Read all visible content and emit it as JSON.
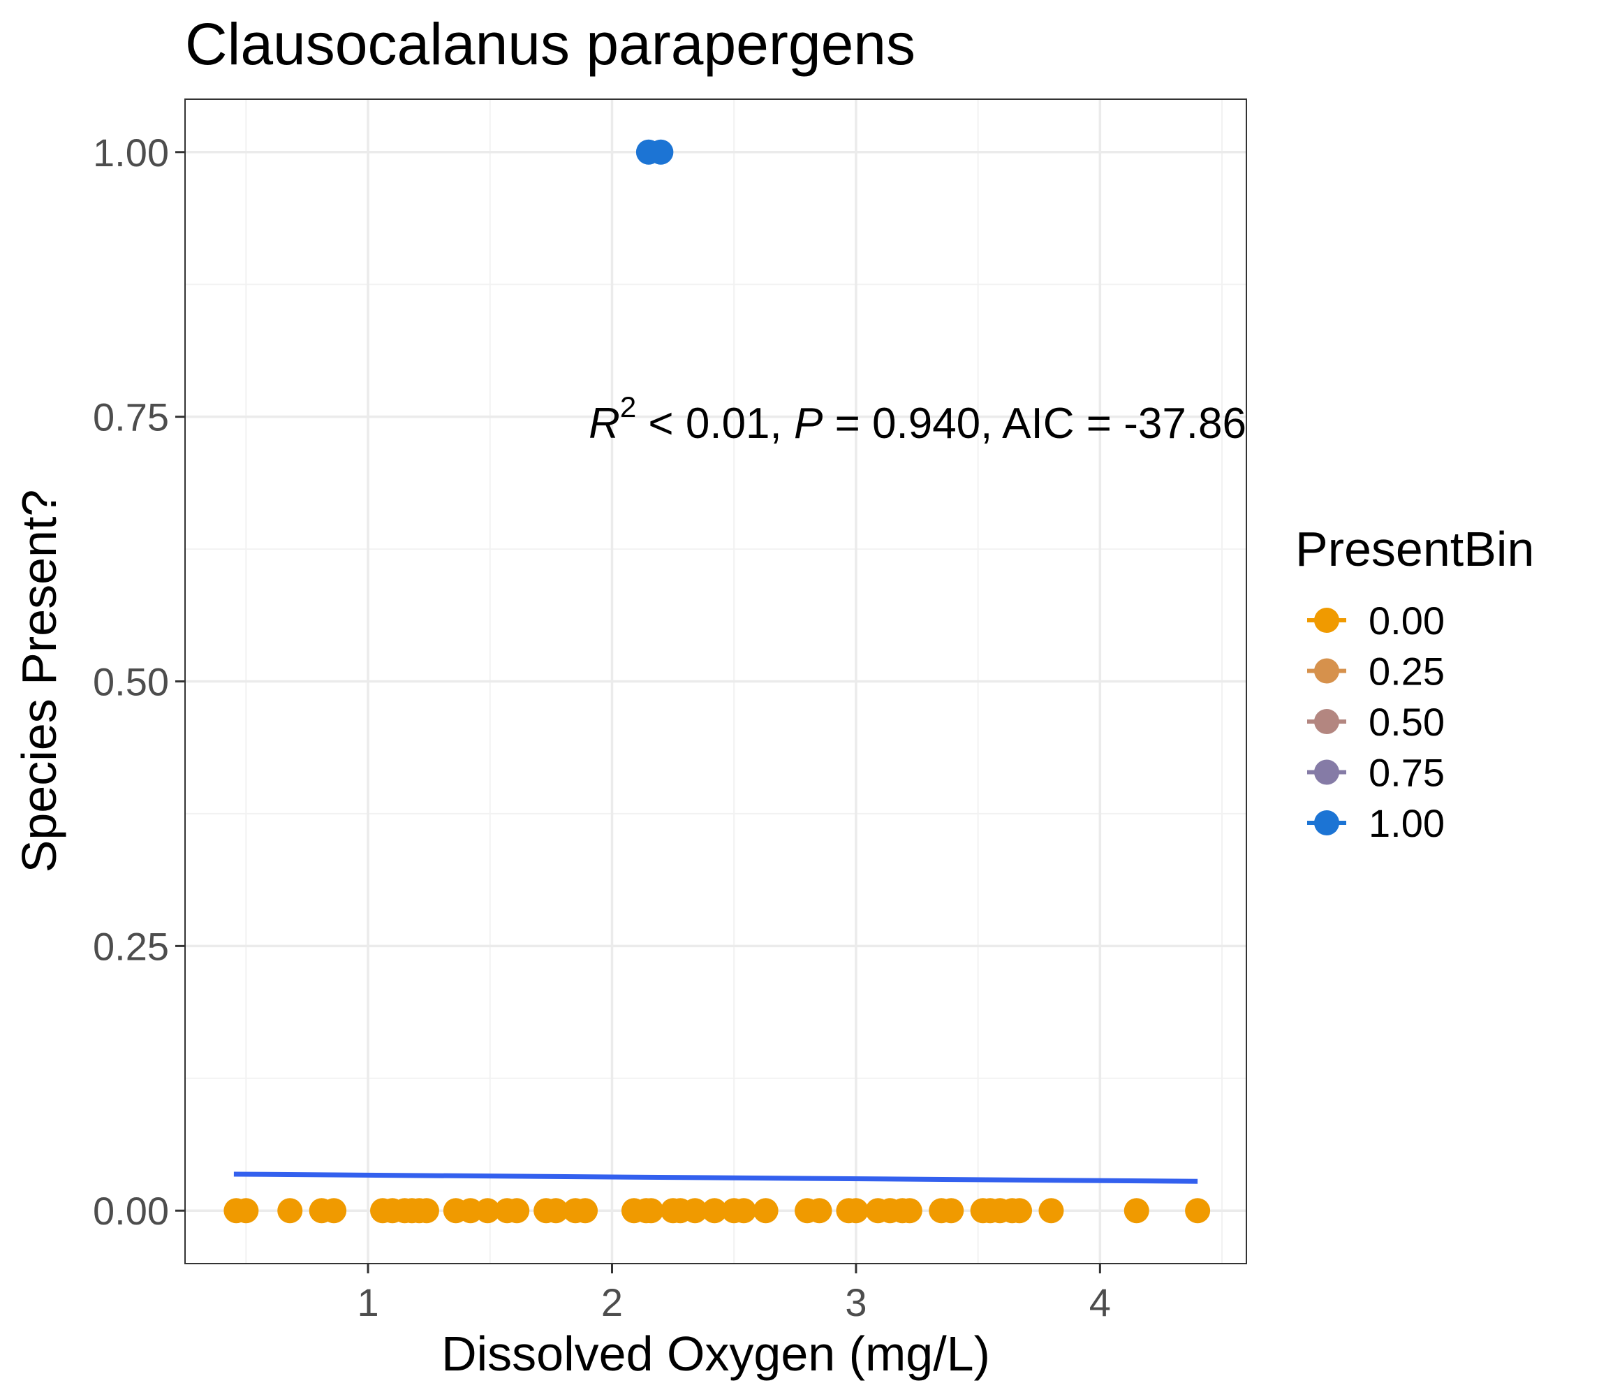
{
  "chart_data": {
    "type": "scatter",
    "title": "Clausocalanus parapergens",
    "xlabel": "Dissolved Oxygen (mg/L)",
    "ylabel": "Species Present?",
    "xlim": [
      0.25,
      4.6
    ],
    "ylim": [
      -0.05,
      1.05
    ],
    "x_ticks": [
      1,
      2,
      3,
      4
    ],
    "x_tick_labels": [
      "1",
      "2",
      "3",
      "4"
    ],
    "y_ticks": [
      0,
      0.25,
      0.5,
      0.75,
      1.0
    ],
    "y_tick_labels": [
      "0.00",
      "0.25",
      "0.50",
      "0.75",
      "1.00"
    ],
    "grid": true,
    "points_absent": {
      "y": 0,
      "x": [
        0.46,
        0.5,
        0.68,
        0.81,
        0.86,
        1.06,
        1.1,
        1.15,
        1.18,
        1.21,
        1.24,
        1.36,
        1.42,
        1.49,
        1.57,
        1.61,
        1.73,
        1.77,
        1.85,
        1.89,
        2.09,
        2.14,
        2.16,
        2.25,
        2.28,
        2.34,
        2.42,
        2.5,
        2.54,
        2.63,
        2.8,
        2.85,
        2.97,
        3.0,
        3.09,
        3.14,
        3.19,
        3.22,
        3.35,
        3.39,
        3.52,
        3.55,
        3.59,
        3.64,
        3.67,
        3.8,
        4.15,
        4.4
      ],
      "color": "#f09a00"
    },
    "points_present": {
      "y": 1,
      "x": [
        2.15,
        2.2
      ],
      "color": "#1c74d4"
    },
    "fit_line": {
      "x": [
        0.45,
        4.4
      ],
      "y": [
        0.0345,
        0.0277
      ],
      "color": "#3360ee"
    },
    "annotation": {
      "r2_symbol": "R",
      "r2_exp": "2",
      "r2_rest": " < 0.01, ",
      "p_symbol": "P",
      "p_rest": " = 0.940, AIC = -37.86"
    },
    "legend": {
      "title": "PresentBin",
      "position": "right",
      "items": [
        {
          "label": "0.00",
          "color": "#f09a00"
        },
        {
          "label": "0.25",
          "color": "#d6914c"
        },
        {
          "label": "0.50",
          "color": "#b38680"
        },
        {
          "label": "0.75",
          "color": "#857ba6"
        },
        {
          "label": "1.00",
          "color": "#1c74d4"
        }
      ]
    }
  }
}
